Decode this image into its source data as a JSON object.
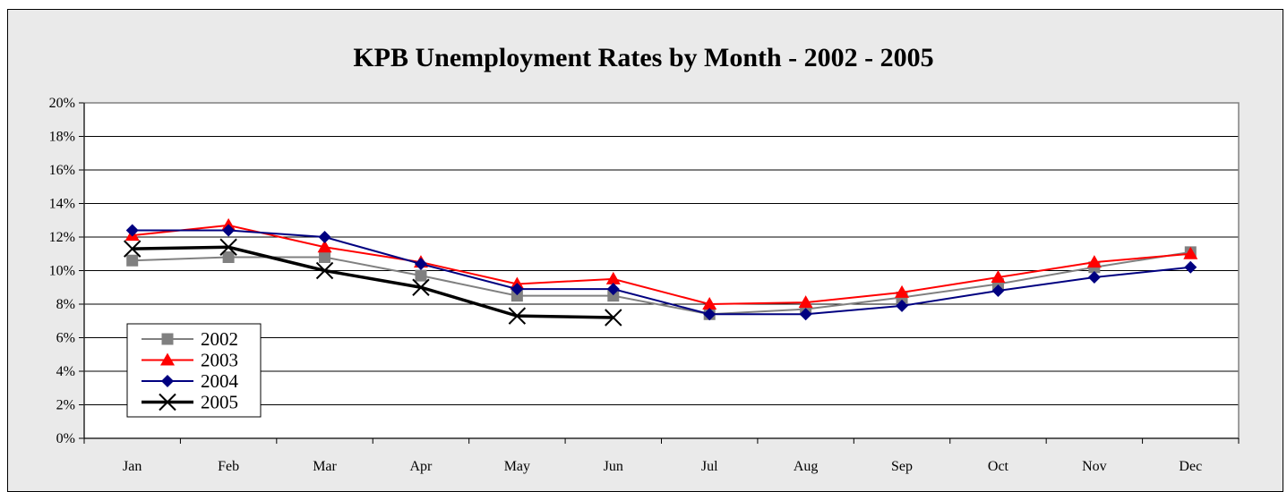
{
  "chart_data": {
    "type": "line",
    "title": "KPB Unemployment Rates by Month - 2002 - 2005",
    "xlabel": "",
    "ylabel": "",
    "categories": [
      "Jan",
      "Feb",
      "Mar",
      "Apr",
      "May",
      "Jun",
      "Jul",
      "Aug",
      "Sep",
      "Oct",
      "Nov",
      "Dec"
    ],
    "ylim": [
      0,
      20
    ],
    "yticks": [
      "0%",
      "2%",
      "4%",
      "6%",
      "8%",
      "10%",
      "12%",
      "14%",
      "16%",
      "18%",
      "20%"
    ],
    "grid": true,
    "legend_position": "bottom-left",
    "series": [
      {
        "name": "2002",
        "color": "#808080",
        "marker": "square",
        "values": [
          10.6,
          10.8,
          10.8,
          9.7,
          8.5,
          8.5,
          7.4,
          7.7,
          8.4,
          9.2,
          10.2,
          11.1
        ]
      },
      {
        "name": "2003",
        "color": "#ff0000",
        "marker": "triangle",
        "values": [
          12.1,
          12.7,
          11.4,
          10.5,
          9.2,
          9.5,
          8.0,
          8.1,
          8.7,
          9.6,
          10.5,
          11.0
        ]
      },
      {
        "name": "2004",
        "color": "#000080",
        "marker": "diamond",
        "values": [
          12.4,
          12.4,
          12.0,
          10.4,
          8.9,
          8.9,
          7.4,
          7.4,
          7.9,
          8.8,
          9.6,
          10.2
        ]
      },
      {
        "name": "2005",
        "color": "#000000",
        "marker": "x",
        "values": [
          11.3,
          11.4,
          10.0,
          9.0,
          7.3,
          7.2,
          null,
          null,
          null,
          null,
          null,
          null
        ]
      }
    ]
  }
}
